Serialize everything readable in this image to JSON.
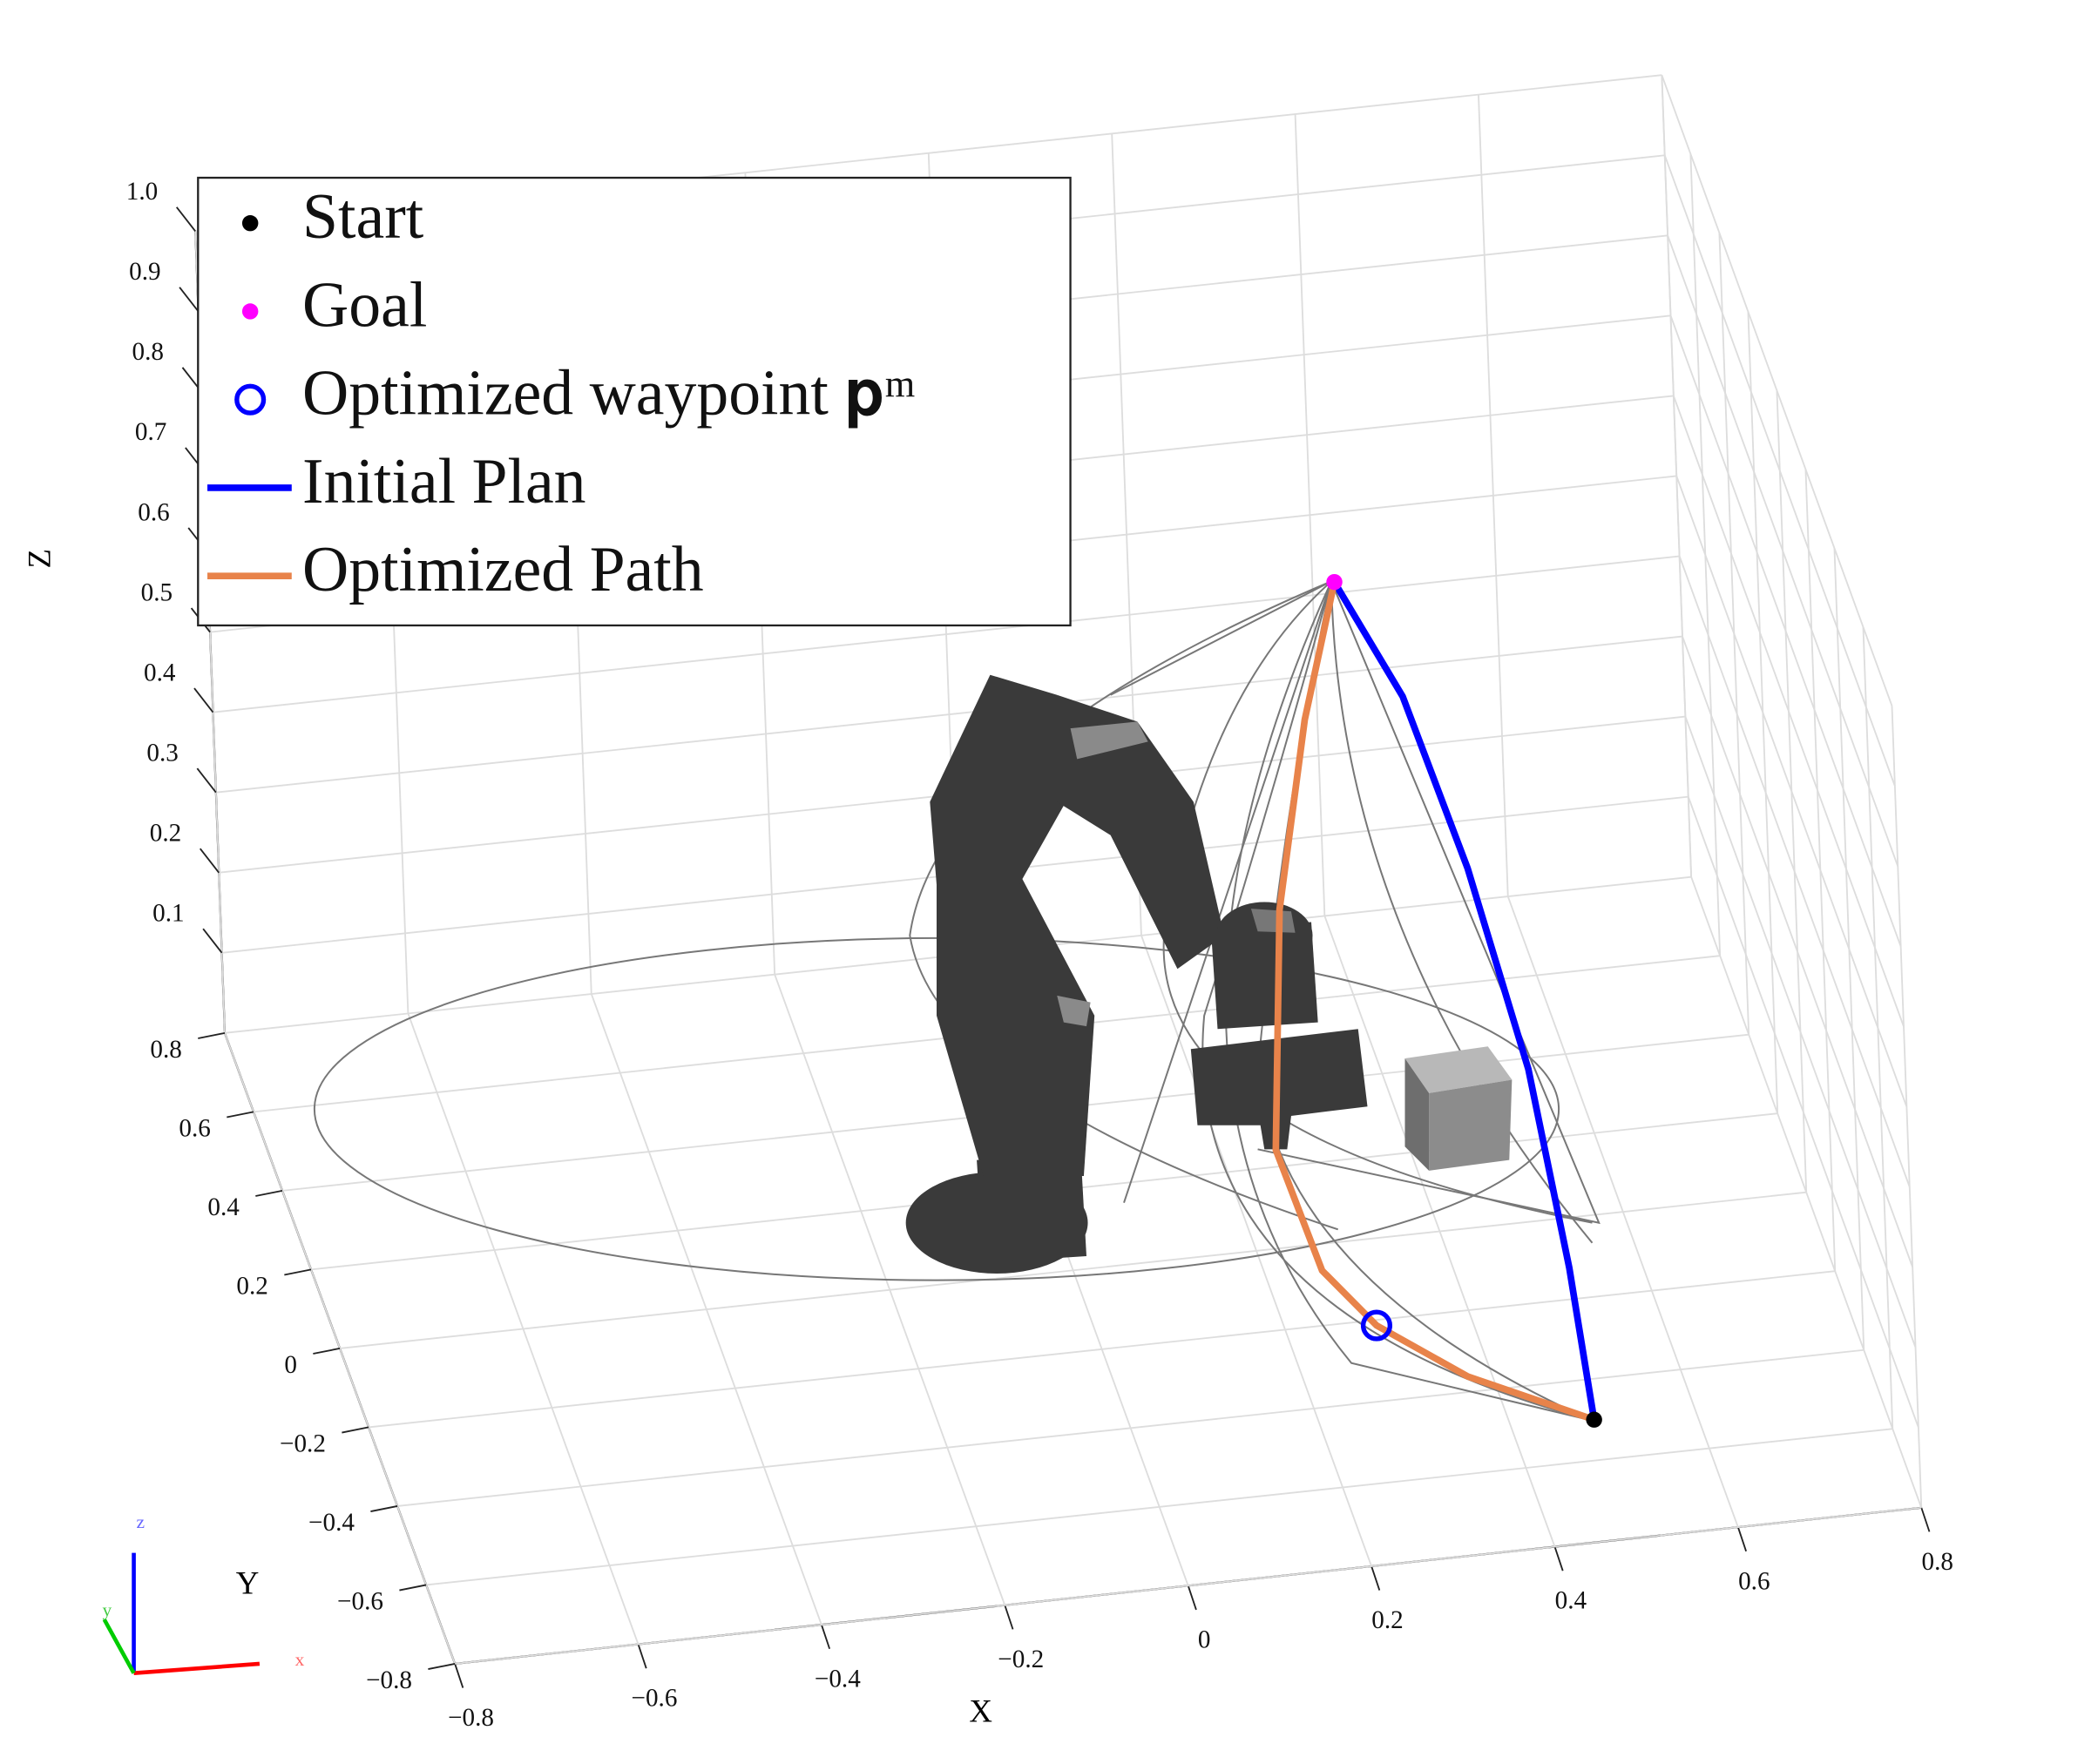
{
  "chart_data": {
    "type": "scatter3d",
    "x_label": "X",
    "y_label": "Y",
    "z_label": "Z",
    "xlim": [
      -0.8,
      0.8
    ],
    "ylim": [
      -0.8,
      0.8
    ],
    "zlim": [
      0,
      1
    ],
    "xticks": [
      {
        "value": -0.8,
        "label": "−0.8"
      },
      {
        "value": -0.6,
        "label": "−0.6"
      },
      {
        "value": -0.4,
        "label": "−0.4"
      },
      {
        "value": -0.2,
        "label": "−0.2"
      },
      0,
      0.2,
      0.4,
      0.6,
      0.8
    ],
    "yticks": [
      {
        "value": -0.8,
        "label": "−0.8"
      },
      {
        "value": -0.6,
        "label": "−0.6"
      },
      {
        "value": -0.4,
        "label": "−0.4"
      },
      {
        "value": -0.2,
        "label": "−0.2"
      },
      0,
      0.2,
      0.4,
      0.6,
      0.8
    ],
    "zticks": [
      0.1,
      0.2,
      0.3,
      0.4,
      0.5,
      0.6,
      0.7,
      0.8,
      0.9,
      {
        "value": 1,
        "label": "1.0"
      }
    ],
    "grid": true,
    "legend_position": "upper left",
    "triad_labels": {
      "x": "x",
      "y": "y",
      "z": "z"
    },
    "series": [
      {
        "name": "Start",
        "marker": "dot",
        "color": "#000000",
        "x": [
          0.49
        ],
        "y": [
          -0.5
        ],
        "z": [
          0
        ]
      },
      {
        "name": "Goal",
        "marker": "dot",
        "color": "#ff00ff",
        "x": [
          0.4
        ],
        "y": [
          0.63
        ],
        "z": [
          0.5
        ]
      },
      {
        "name": "Optimized waypoint 𝐩ᵐ",
        "marker": "circle",
        "color": "#0000ff",
        "x": [
          0.27
        ],
        "y": [
          -0.41
        ],
        "z": [
          0.1
        ]
      },
      {
        "name": "Initial Plan",
        "marker": "line",
        "color": "#0000ff",
        "width": 5,
        "x": [
          0.4,
          0.45,
          0.48,
          0.5,
          0.5,
          0.49
        ],
        "y": [
          0.63,
          0.49,
          0.25,
          -0.02,
          -0.28,
          -0.5
        ],
        "z": [
          0.5,
          0.42,
          0.32,
          0.2,
          0.08,
          0
        ]
      },
      {
        "name": "Optimized Path",
        "marker": "line",
        "color": "#e8834a",
        "width": 5,
        "x": [
          0.4,
          0.33,
          0.25,
          0.19,
          0.22,
          0.27,
          0.36,
          0.49
        ],
        "y": [
          0.63,
          0.4,
          0.08,
          -0.25,
          -0.36,
          -0.41,
          -0.46,
          -0.5
        ],
        "z": [
          0.5,
          0.45,
          0.38,
          0.25,
          0.15,
          0.1,
          0.05,
          0
        ]
      }
    ]
  }
}
